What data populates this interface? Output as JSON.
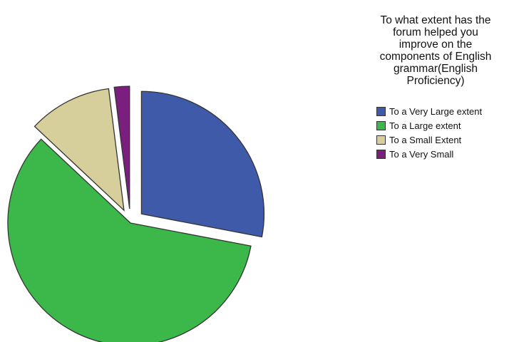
{
  "chart_data": {
    "type": "pie",
    "title_lines": [
      "To what extent has the",
      "forum helped you",
      "improve on the",
      "components of English",
      "grammar(English",
      "Proficiency)"
    ],
    "legend_placement": "right",
    "slices": [
      {
        "label": "To a Very Large extent",
        "value": 28.0,
        "color": "#3f5aa8",
        "exploded": true
      },
      {
        "label": "To a Large extent",
        "value": 59.0,
        "color": "#3cb84a",
        "exploded": false
      },
      {
        "label": "To a Small Extent",
        "value": 11.0,
        "color": "#d6cf9b",
        "exploded": true
      },
      {
        "label": "To a Very Small",
        "value": 2.0,
        "color": "#7a1f7e",
        "exploded": true
      }
    ]
  }
}
